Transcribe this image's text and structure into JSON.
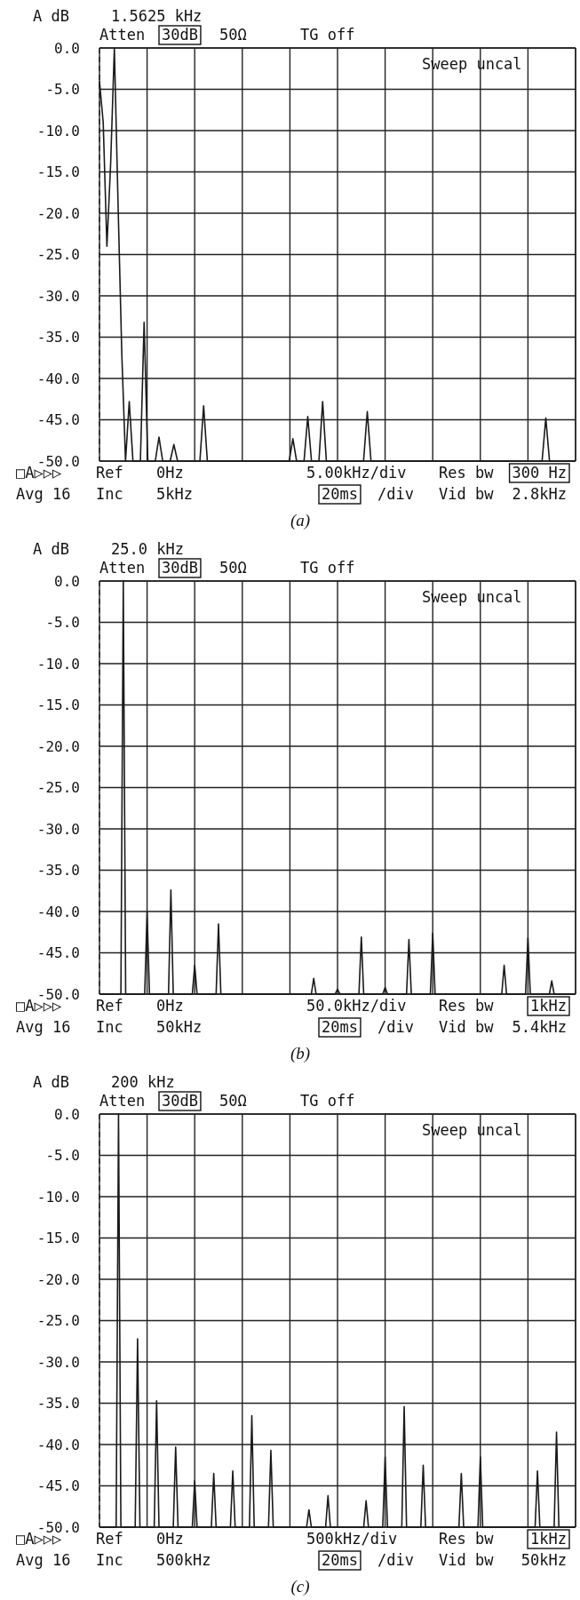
{
  "chart_data": [
    {
      "type": "line",
      "ylabel": "A dB",
      "ylim": [
        -50,
        0
      ],
      "grid": true,
      "tick_labels": "y",
      "yticks": [
        {
          "value": 0,
          "label": "0.0"
        },
        {
          "value": -5,
          "label": "-5.0"
        },
        {
          "value": -10,
          "label": "-10.0"
        },
        {
          "value": -15,
          "label": "-15.0"
        },
        {
          "value": -20,
          "label": "-20.0"
        },
        {
          "value": -25,
          "label": "-25.0"
        },
        {
          "value": -30,
          "label": "-30.0"
        },
        {
          "value": -35,
          "label": "-35.0"
        },
        {
          "value": -40,
          "label": "-40.0"
        },
        {
          "value": -45,
          "label": "-45.0"
        },
        {
          "value": -50,
          "label": "-50.0"
        }
      ],
      "categories": [
        null,
        null,
        null,
        null,
        null,
        null,
        null,
        null,
        null,
        null,
        null,
        null,
        null,
        null,
        null,
        null,
        null,
        null,
        null,
        null,
        null,
        null,
        null,
        null,
        null,
        null,
        null,
        null,
        null,
        null,
        null,
        null,
        null,
        null,
        null,
        null,
        null,
        null,
        null,
        null,
        null,
        null,
        null,
        null,
        null,
        null,
        null,
        null,
        null,
        null,
        null,
        null,
        null,
        null,
        null,
        null,
        null,
        null,
        null,
        null,
        null,
        null,
        null,
        null,
        null,
        null,
        null,
        null,
        null,
        null,
        null,
        null,
        null,
        null,
        null,
        null,
        null,
        null,
        null,
        null,
        null,
        null,
        null,
        null,
        null,
        null,
        null,
        null,
        null,
        null,
        null,
        null,
        null,
        null,
        null,
        null,
        null,
        null,
        null,
        null,
        null,
        null,
        null,
        null,
        null,
        null,
        null,
        null,
        null,
        null,
        null,
        null,
        null,
        null,
        null,
        null,
        null,
        null,
        null,
        null,
        null,
        null,
        null,
        null,
        null,
        null,
        null,
        null,
        null
      ],
      "series": [
        {
          "color": "#1a1a1a",
          "values": [
            -4,
            -9,
            -24,
            -14,
            0,
            -19,
            -37,
            -50,
            -42.8,
            -50,
            -50,
            -50,
            -33.2,
            -50,
            -50,
            -50,
            -47.1,
            -50,
            -50,
            -50,
            -48,
            -50,
            -50,
            -50,
            -50,
            -50,
            -50,
            -50,
            -43.3,
            -50,
            -50,
            -50,
            -50,
            -50,
            -50,
            -50,
            -50,
            -50,
            -50,
            -50,
            -50,
            -50,
            -50,
            -50,
            -50,
            -50,
            -50,
            -50,
            -50,
            -50,
            -50,
            -50,
            -47.3,
            -50,
            -50,
            -50,
            -44.6,
            -50,
            -50,
            -50,
            -42.8,
            -50,
            -50,
            -50,
            -50,
            -50,
            -50,
            -50,
            -50,
            -50,
            -50,
            -50,
            -44,
            -50,
            -50,
            -50,
            -50,
            -50,
            -50,
            -50,
            -50,
            -50,
            -50,
            -50,
            -50,
            -50,
            -50,
            -50,
            -50,
            -50,
            -50,
            -50,
            -50,
            -50,
            -50,
            -50,
            -50,
            -50,
            -50,
            -50,
            -50,
            -50,
            -50,
            -50,
            -50,
            -50,
            -50,
            -50,
            -50,
            -50,
            -50,
            -50,
            -50,
            -50,
            -50,
            -50,
            -50,
            -50,
            -50,
            -50,
            -44.8,
            -50,
            -50,
            -50,
            -50,
            -50,
            -50,
            -50,
            -50
          ]
        }
      ],
      "annotations": [
        "1.5625 kHz",
        "Atten",
        "30dB",
        "50Ω",
        "TG off",
        "Sweep uncal",
        "□A▷▷▷",
        "Ref",
        "0Hz",
        "5.00kHz/div",
        "Res bw",
        "300 Hz",
        "Avg 16",
        "Inc",
        "5kHz",
        "20ms",
        "/div",
        "Vid bw",
        "2.8kHz",
        "(a)"
      ]
    },
    {
      "type": "line",
      "ylabel": "A dB",
      "ylim": [
        -50,
        0
      ],
      "grid": true,
      "tick_labels": "y",
      "yticks": [
        {
          "value": 0,
          "label": "0.0"
        },
        {
          "value": -5,
          "label": "-5.0"
        },
        {
          "value": -10,
          "label": "-10.0"
        },
        {
          "value": -15,
          "label": "-15.0"
        },
        {
          "value": -20,
          "label": "-20.0"
        },
        {
          "value": -25,
          "label": "-25.0"
        },
        {
          "value": -30,
          "label": "-30.0"
        },
        {
          "value": -35,
          "label": "-35.0"
        },
        {
          "value": -40,
          "label": "-40.0"
        },
        {
          "value": -45,
          "label": "-45.0"
        },
        {
          "value": -50,
          "label": "-50.0"
        }
      ],
      "categories": [
        null,
        null,
        null,
        null,
        null,
        null,
        null,
        null,
        null,
        null,
        null,
        null,
        null,
        null,
        null,
        null,
        null,
        null,
        null,
        null,
        null,
        null,
        null,
        null,
        null,
        null,
        null,
        null,
        null,
        null,
        null,
        null,
        null,
        null,
        null,
        null,
        null,
        null,
        null,
        null,
        null,
        null,
        null,
        null,
        null,
        null,
        null,
        null,
        null,
        null,
        null,
        null,
        null,
        null,
        null,
        null,
        null,
        null,
        null,
        null,
        null,
        null,
        null,
        null,
        null,
        null,
        null,
        null,
        null,
        null,
        null,
        null,
        null,
        null,
        null,
        null,
        null,
        null,
        null,
        null,
        null,
        null,
        null,
        null,
        null,
        null,
        null,
        null,
        null,
        null,
        null,
        null,
        null,
        null,
        null,
        null,
        null,
        null,
        null,
        null,
        null,
        null,
        null,
        null,
        null,
        null,
        null,
        null,
        null,
        null,
        null,
        null,
        null,
        null,
        null,
        null,
        null,
        null,
        null,
        null,
        null,
        null,
        null,
        null,
        null,
        null,
        null,
        null,
        null,
        null,
        null,
        null,
        null,
        null,
        null,
        null,
        null,
        null,
        null,
        null,
        null,
        null,
        null,
        null,
        null,
        null,
        null,
        null,
        null,
        null,
        null,
        null,
        null,
        null,
        null,
        null,
        null,
        null,
        null,
        null,
        null,
        null,
        null,
        null,
        null,
        null,
        null,
        null,
        null,
        null,
        null,
        null,
        null,
        null,
        null,
        null,
        null,
        null,
        null,
        null,
        null,
        null,
        null,
        null,
        null,
        null,
        null,
        null,
        null,
        null,
        null,
        null,
        null,
        null,
        null,
        null,
        null,
        null,
        null,
        null,
        null
      ],
      "series": [
        {
          "color": "#1a1a1a",
          "values": [
            -50,
            -50,
            -50,
            -50,
            -50,
            -50,
            -50,
            -50,
            -50,
            -50,
            0,
            -50,
            -50,
            -50,
            -50,
            -50,
            -50,
            -50,
            -50,
            -50,
            -40,
            -50,
            -50,
            -50,
            -50,
            -50,
            -50,
            -50,
            -50,
            -50,
            -37.4,
            -50,
            -50,
            -50,
            -50,
            -50,
            -50,
            -50,
            -50,
            -50,
            -46.5,
            -50,
            -50,
            -50,
            -50,
            -50,
            -50,
            -50,
            -50,
            -50,
            -41.5,
            -50,
            -50,
            -50,
            -50,
            -50,
            -50,
            -50,
            -50,
            -50,
            -50,
            -50,
            -50,
            -50,
            -50,
            -50,
            -50,
            -50,
            -50,
            -50,
            -50,
            -50,
            -50,
            -50,
            -50,
            -50,
            -50,
            -50,
            -50,
            -50,
            -50,
            -50,
            -50,
            -50,
            -50,
            -50,
            -50,
            -50,
            -50,
            -50,
            -48.1,
            -50,
            -50,
            -50,
            -50,
            -50,
            -50,
            -50,
            -50,
            -50,
            -49.4,
            -50,
            -50,
            -50,
            -50,
            -50,
            -50,
            -50,
            -50,
            -50,
            -43.1,
            -50,
            -50,
            -50,
            -50,
            -50,
            -50,
            -50,
            -50,
            -50,
            -49.2,
            -50,
            -50,
            -50,
            -50,
            -50,
            -50,
            -50,
            -50,
            -50,
            -43.4,
            -50,
            -50,
            -50,
            -50,
            -50,
            -50,
            -50,
            -50,
            -50,
            -42.6,
            -50,
            -50,
            -50,
            -50,
            -50,
            -50,
            -50,
            -50,
            -50,
            -50,
            -50,
            -50,
            -50,
            -50,
            -50,
            -50,
            -50,
            -50,
            -50,
            -50,
            -50,
            -50,
            -50,
            -50,
            -50,
            -50,
            -50,
            -50,
            -50,
            -46.5,
            -50,
            -50,
            -50,
            -50,
            -50,
            -50,
            -50,
            -50,
            -50,
            -43.2,
            -50,
            -50,
            -50,
            -50,
            -50,
            -50,
            -50,
            -50,
            -50,
            -48.4,
            -50,
            -50,
            -50,
            -50,
            -50,
            -50,
            -50,
            -50,
            -50,
            -50
          ]
        }
      ],
      "annotations": [
        "25.0 kHz",
        "Atten",
        "30dB",
        "50Ω",
        "TG off",
        "Sweep uncal",
        "□A▷▷▷",
        "Ref",
        "0Hz",
        "50.0kHz/div",
        "Res bw",
        "1kHz",
        "Avg 16",
        "Inc",
        "50kHz",
        "20ms",
        "/div",
        "Vid bw",
        "5.4kHz",
        "(b)"
      ]
    },
    {
      "type": "line",
      "ylabel": "A dB",
      "ylim": [
        -50,
        0
      ],
      "grid": true,
      "tick_labels": "y",
      "yticks": [
        {
          "value": 0,
          "label": "0.0"
        },
        {
          "value": -5,
          "label": "-5.0"
        },
        {
          "value": -10,
          "label": "-10.0"
        },
        {
          "value": -15,
          "label": "-15.0"
        },
        {
          "value": -20,
          "label": "-20.0"
        },
        {
          "value": -25,
          "label": "-25.0"
        },
        {
          "value": -30,
          "label": "-30.0"
        },
        {
          "value": -35,
          "label": "-35.0"
        },
        {
          "value": -40,
          "label": "-40.0"
        },
        {
          "value": -45,
          "label": "-45.0"
        },
        {
          "value": -50,
          "label": "-50.0"
        }
      ],
      "categories": [
        null,
        null,
        null,
        null,
        null,
        null,
        null,
        null,
        null,
        null,
        null,
        null,
        null,
        null,
        null,
        null,
        null,
        null,
        null,
        null,
        null,
        null,
        null,
        null,
        null,
        null,
        null,
        null,
        null,
        null,
        null,
        null,
        null,
        null,
        null,
        null,
        null,
        null,
        null,
        null,
        null,
        null,
        null,
        null,
        null,
        null,
        null,
        null,
        null,
        null,
        null,
        null,
        null,
        null,
        null,
        null,
        null,
        null,
        null,
        null,
        null,
        null,
        null,
        null,
        null,
        null,
        null,
        null,
        null,
        null,
        null,
        null,
        null,
        null,
        null,
        null,
        null,
        null,
        null,
        null,
        null,
        null,
        null,
        null,
        null,
        null,
        null,
        null,
        null,
        null,
        null,
        null,
        null,
        null,
        null,
        null,
        null,
        null,
        null,
        null,
        null,
        null,
        null,
        null,
        null,
        null,
        null,
        null,
        null,
        null,
        null,
        null,
        null,
        null,
        null,
        null,
        null,
        null,
        null,
        null,
        null,
        null,
        null,
        null,
        null,
        null,
        null,
        null,
        null,
        null,
        null,
        null,
        null,
        null,
        null,
        null,
        null,
        null,
        null,
        null,
        null,
        null,
        null,
        null,
        null,
        null,
        null,
        null,
        null,
        null,
        null,
        null,
        null,
        null,
        null,
        null,
        null,
        null,
        null,
        null,
        null,
        null,
        null,
        null,
        null,
        null,
        null,
        null,
        null,
        null,
        null,
        null,
        null,
        null,
        null,
        null,
        null,
        null,
        null,
        null,
        null,
        null,
        null,
        null,
        null,
        null,
        null,
        null,
        null,
        null,
        null,
        null,
        null,
        null,
        null,
        null,
        null,
        null,
        null,
        null,
        null
      ],
      "series": [
        {
          "color": "#1a1a1a",
          "values": [
            -50,
            -50,
            -50,
            -50,
            -50,
            -50,
            -50,
            -50,
            0,
            -50,
            -50,
            -50,
            -50,
            -50,
            -50,
            -50,
            -27.2,
            -50,
            -50,
            -50,
            -50,
            -50,
            -50,
            -50,
            -34.7,
            -50,
            -50,
            -50,
            -50,
            -50,
            -50,
            -50,
            -40.3,
            -50,
            -50,
            -50,
            -50,
            -50,
            -50,
            -50,
            -44.4,
            -50,
            -50,
            -50,
            -50,
            -50,
            -50,
            -50,
            -43.5,
            -50,
            -50,
            -50,
            -50,
            -50,
            -50,
            -50,
            -43.2,
            -50,
            -50,
            -50,
            -50,
            -50,
            -50,
            -50,
            -36.5,
            -50,
            -50,
            -50,
            -50,
            -50,
            -50,
            -50,
            -40.7,
            -50,
            -50,
            -50,
            -50,
            -50,
            -50,
            -50,
            -50,
            -50,
            -50,
            -50,
            -50,
            -50,
            -50,
            -50,
            -47.9,
            -50,
            -50,
            -50,
            -50,
            -50,
            -50,
            -50,
            -46.2,
            -50,
            -50,
            -50,
            -50,
            -50,
            -50,
            -50,
            -50,
            -50,
            -50,
            -50,
            -50,
            -50,
            -50,
            -50,
            -46.8,
            -50,
            -50,
            -50,
            -50,
            -50,
            -50,
            -50,
            -41.5,
            -50,
            -50,
            -50,
            -50,
            -50,
            -50,
            -50,
            -35.4,
            -50,
            -50,
            -50,
            -50,
            -50,
            -50,
            -50,
            -42.5,
            -50,
            -50,
            -50,
            -50,
            -50,
            -50,
            -50,
            -50,
            -50,
            -50,
            -50,
            -50,
            -50,
            -50,
            -50,
            -43.5,
            -50,
            -50,
            -50,
            -50,
            -50,
            -50,
            -50,
            -41.5,
            -50,
            -50,
            -50,
            -50,
            -50,
            -50,
            -50,
            -50,
            -50,
            -50,
            -50,
            -50,
            -50,
            -50,
            -50,
            -50,
            -50,
            -50,
            -50,
            -50,
            -50,
            -50,
            -50,
            -43.2,
            -50,
            -50,
            -50,
            -50,
            -50,
            -50,
            -50,
            -38.5,
            -50,
            -50,
            -50,
            -50,
            -50,
            -50,
            -50,
            -50
          ]
        }
      ],
      "annotations": [
        "200 kHz",
        "Atten",
        "30dB",
        "50Ω",
        "TG off",
        "Sweep uncal",
        "□A▷▷▷",
        "Ref",
        "0Hz",
        "500kHz/div",
        "Res bw",
        "1kHz",
        "Avg 16",
        "Inc",
        "500kHz",
        "20ms",
        "/div",
        "Vid bw",
        "50kHz",
        "(c)"
      ]
    }
  ]
}
